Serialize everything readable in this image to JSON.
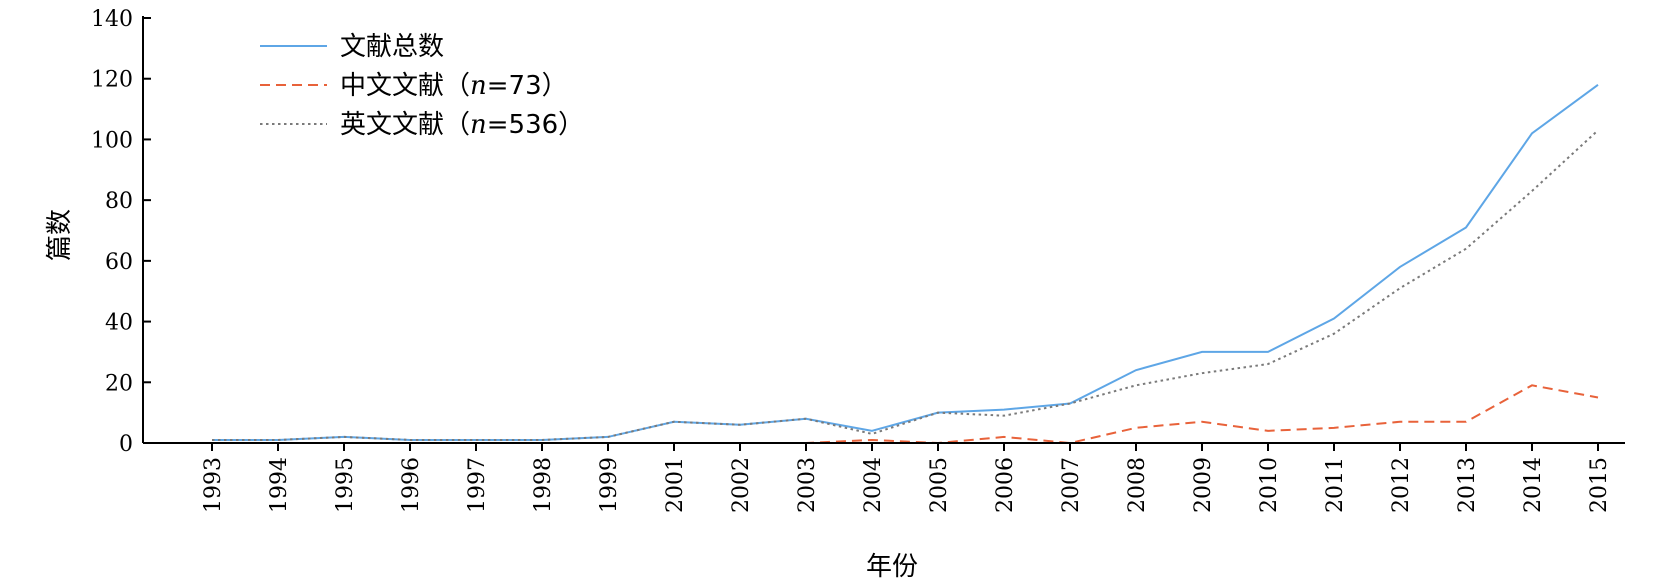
{
  "chart_data": {
    "type": "line",
    "categories": [
      "1993",
      "1994",
      "1995",
      "1996",
      "1997",
      "1998",
      "1999",
      "2001",
      "2002",
      "2003",
      "2004",
      "2005",
      "2006",
      "2007",
      "2008",
      "2009",
      "2010",
      "2011",
      "2012",
      "2013",
      "2014",
      "2015"
    ],
    "xlabel": "年份",
    "ylabel": "篇数",
    "ylim": [
      0,
      140
    ],
    "yticks": [
      0,
      20,
      40,
      60,
      80,
      100,
      120,
      140
    ],
    "grid": false,
    "legend_position": "top-left",
    "series": [
      {
        "name": "文献总数",
        "style": "solid",
        "color": "#5ea6e6",
        "values": [
          1,
          1,
          2,
          1,
          1,
          1,
          2,
          7,
          6,
          8,
          4,
          10,
          11,
          13,
          24,
          30,
          30,
          41,
          58,
          71,
          102,
          118
        ]
      },
      {
        "name": "中文文献（n=73）",
        "name_prefix": "中文文献（",
        "name_var": "n",
        "name_suffix": "=73）",
        "style": "dashed",
        "color": "#e8623a",
        "values": [
          0,
          0,
          0,
          0,
          0,
          0,
          0,
          0,
          0,
          0,
          1,
          0,
          2,
          0,
          5,
          7,
          4,
          5,
          7,
          7,
          19,
          15
        ]
      },
      {
        "name": "英文文献（n=536）",
        "name_prefix": "英文文献（",
        "name_var": "n",
        "name_suffix": "=536）",
        "style": "dotted",
        "color": "#7a7a7a",
        "values": [
          1,
          1,
          2,
          1,
          1,
          1,
          2,
          7,
          6,
          8,
          3,
          10,
          9,
          13,
          19,
          23,
          26,
          36,
          51,
          64,
          83,
          103
        ]
      }
    ]
  }
}
